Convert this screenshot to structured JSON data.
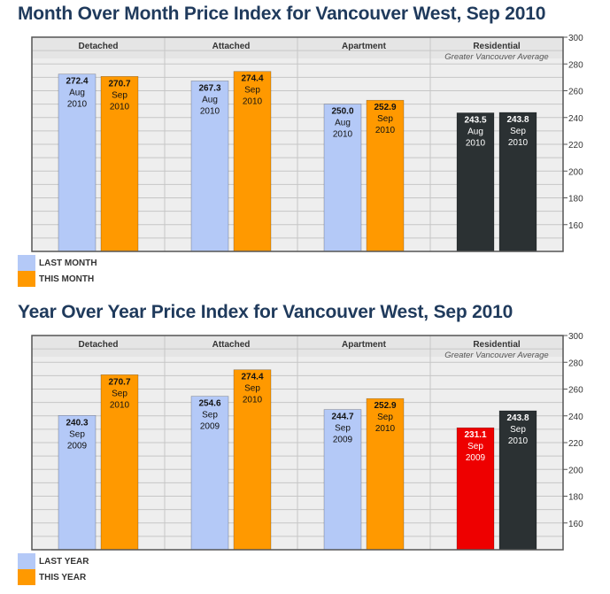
{
  "chart_data": [
    {
      "type": "bar",
      "title": "Month Over Month Price Index for Vancouver West, Sep 2010",
      "ylim": [
        140,
        300
      ],
      "yticks": [
        160,
        180,
        200,
        220,
        240,
        260,
        280,
        300
      ],
      "groups": [
        {
          "name": "Detached",
          "subtitle": "",
          "bars": [
            {
              "value": 272.4,
              "label": "272.4",
              "period": "Aug",
              "year": "2010",
              "color": "#b4c9f7"
            },
            {
              "value": 270.7,
              "label": "270.7",
              "period": "Sep",
              "year": "2010",
              "color": "#ff9900"
            }
          ]
        },
        {
          "name": "Attached",
          "subtitle": "",
          "bars": [
            {
              "value": 267.3,
              "label": "267.3",
              "period": "Aug",
              "year": "2010",
              "color": "#b4c9f7"
            },
            {
              "value": 274.4,
              "label": "274.4",
              "period": "Sep",
              "year": "2010",
              "color": "#ff9900"
            }
          ]
        },
        {
          "name": "Apartment",
          "subtitle": "",
          "bars": [
            {
              "value": 250.0,
              "label": "250.0",
              "period": "Aug",
              "year": "2010",
              "color": "#b4c9f7"
            },
            {
              "value": 252.9,
              "label": "252.9",
              "period": "Sep",
              "year": "2010",
              "color": "#ff9900"
            }
          ]
        },
        {
          "name": "Residential",
          "subtitle": "Greater Vancouver Average",
          "bars": [
            {
              "value": 243.5,
              "label": "243.5",
              "period": "Aug",
              "year": "2010",
              "color": "#2b3133"
            },
            {
              "value": 243.8,
              "label": "243.8",
              "period": "Sep",
              "year": "2010",
              "color": "#2b3133"
            }
          ]
        }
      ],
      "legend": [
        {
          "label": "LAST MONTH",
          "color": "#b4c9f7"
        },
        {
          "label": "THIS MONTH",
          "color": "#ff9900"
        }
      ]
    },
    {
      "type": "bar",
      "title": "Year Over Year Price Index for Vancouver West, Sep 2010",
      "ylim": [
        140,
        300
      ],
      "yticks": [
        160,
        180,
        200,
        220,
        240,
        260,
        280,
        300
      ],
      "groups": [
        {
          "name": "Detached",
          "subtitle": "",
          "bars": [
            {
              "value": 240.3,
              "label": "240.3",
              "period": "Sep",
              "year": "2009",
              "color": "#b4c9f7"
            },
            {
              "value": 270.7,
              "label": "270.7",
              "period": "Sep",
              "year": "2010",
              "color": "#ff9900"
            }
          ]
        },
        {
          "name": "Attached",
          "subtitle": "",
          "bars": [
            {
              "value": 254.6,
              "label": "254.6",
              "period": "Sep",
              "year": "2009",
              "color": "#b4c9f7"
            },
            {
              "value": 274.4,
              "label": "274.4",
              "period": "Sep",
              "year": "2010",
              "color": "#ff9900"
            }
          ]
        },
        {
          "name": "Apartment",
          "subtitle": "",
          "bars": [
            {
              "value": 244.7,
              "label": "244.7",
              "period": "Sep",
              "year": "2009",
              "color": "#b4c9f7"
            },
            {
              "value": 252.9,
              "label": "252.9",
              "period": "Sep",
              "year": "2010",
              "color": "#ff9900"
            }
          ]
        },
        {
          "name": "Residential",
          "subtitle": "Greater Vancouver Average",
          "bars": [
            {
              "value": 231.1,
              "label": "231.1",
              "period": "Sep",
              "year": "2009",
              "color": "#ee0000"
            },
            {
              "value": 243.8,
              "label": "243.8",
              "period": "Sep",
              "year": "2010",
              "color": "#2b3133"
            }
          ]
        }
      ],
      "legend": [
        {
          "label": "LAST YEAR",
          "color": "#b4c9f7"
        },
        {
          "label": "THIS YEAR",
          "color": "#ff9900"
        }
      ]
    }
  ]
}
